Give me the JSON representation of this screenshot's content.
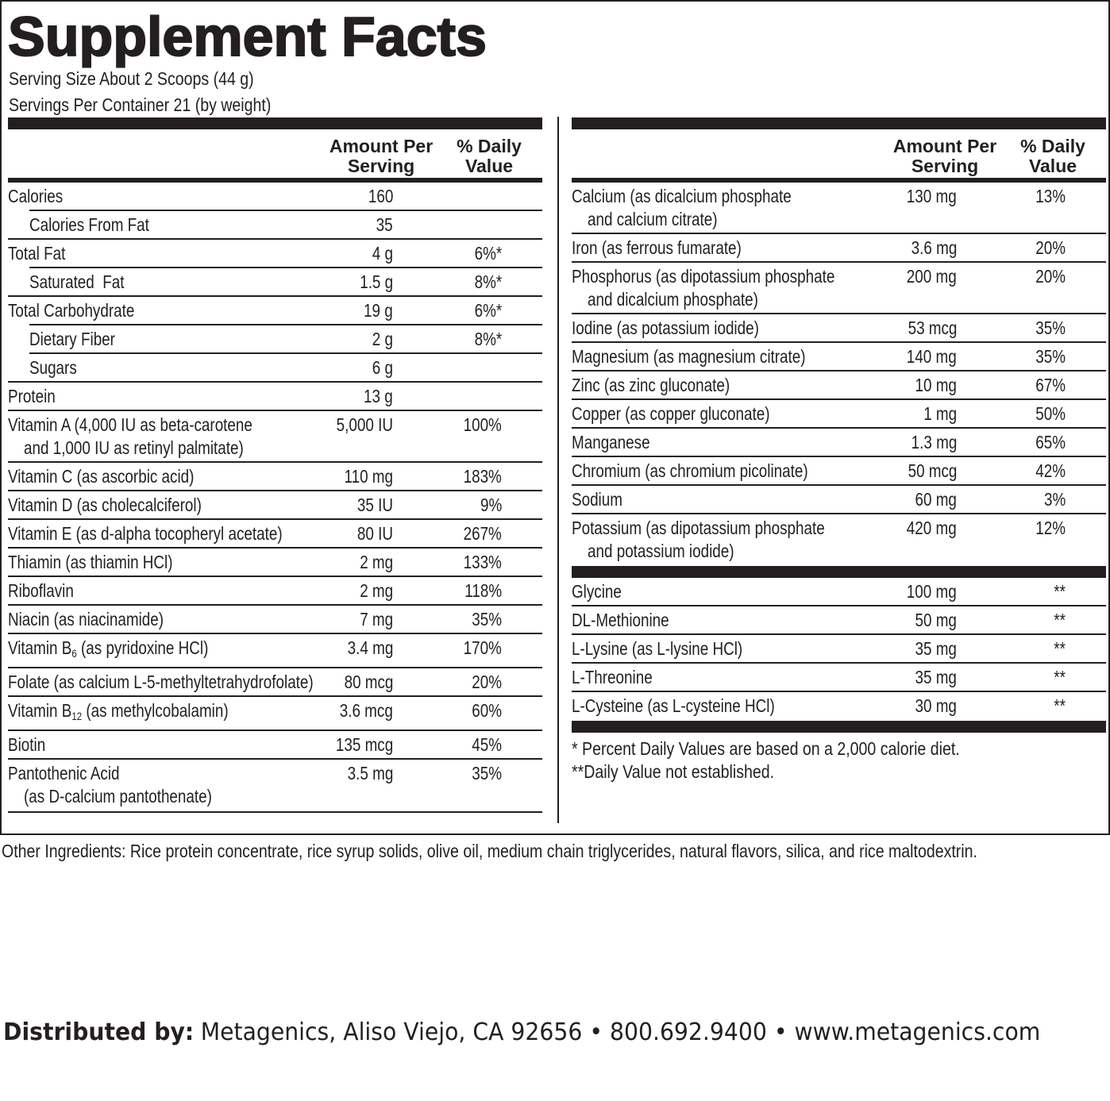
{
  "header": {
    "title": "Supplement Facts",
    "serving_size": "Serving Size About 2 Scoops (44 g)",
    "servings_per_container": "Servings Per Container 21 (by weight)"
  },
  "left_table": {
    "amount_header": [
      "Amount Per",
      "Serving"
    ],
    "dv_header": [
      "% Daily",
      "Value"
    ],
    "rows": [
      {
        "name": [
          "Calories"
        ],
        "amount": "160",
        "sub_rows": [
          {
            "name": [
              "Calories From Fat"
            ],
            "amount": "35"
          }
        ]
      },
      {
        "name": [
          "Total Fat"
        ],
        "amount": "4 g",
        "dv": "6%*",
        "sub_rows": [
          {
            "name": [
              "Saturated  Fat"
            ],
            "amount": "1.5 g",
            "dv": "8%*"
          }
        ]
      },
      {
        "name": [
          "Total Carbohydrate"
        ],
        "amount": "19 g",
        "dv": "6%*",
        "sub_rows": [
          {
            "name": [
              "Dietary Fiber"
            ],
            "amount": "2 g",
            "dv": "8%*"
          },
          {
            "name": [
              "Sugars"
            ],
            "amount": "6 g"
          }
        ]
      },
      {
        "name": [
          "Protein"
        ],
        "amount": "13 g"
      },
      {
        "name": [
          "Vitamin A (4,000 IU as beta-carotene",
          "and 1,000 IU as retinyl palmitate)"
        ],
        "amount": "5,000 IU",
        "dv": "100%"
      },
      {
        "name": [
          "Vitamin C (as ascorbic acid)"
        ],
        "amount": "110 mg",
        "dv": "183%"
      },
      {
        "name": [
          "Vitamin D (as cholecalciferol)"
        ],
        "amount": "35 IU",
        "dv": "9%"
      },
      {
        "name": [
          "Vitamin E (as d-alpha tocopheryl acetate)"
        ],
        "amount": "80 IU",
        "dv": "267%"
      },
      {
        "name": [
          "Thiamin (as thiamin HCl)"
        ],
        "amount": "2 mg",
        "dv": "133%"
      },
      {
        "name": [
          "Riboflavin"
        ],
        "amount": "2 mg",
        "dv": "118%"
      },
      {
        "name": [
          "Niacin (as niacinamide)"
        ],
        "amount": "7 mg",
        "dv": "35%"
      },
      {
        "name": [
          [
            {
              "text": "Vitamin B"
            },
            {
              "text": "6",
              "sub": true
            },
            {
              "text": " (as pyridoxine HCl)"
            }
          ]
        ],
        "amount": "3.4 mg",
        "dv": "170%"
      },
      {
        "name": [
          "Folate (as calcium L-5-methyltetrahydrofolate)"
        ],
        "amount": "80 mcg",
        "dv": "20%"
      },
      {
        "name": [
          [
            {
              "text": "Vitamin B"
            },
            {
              "text": "12",
              "sub": true
            },
            {
              "text": " (as methylcobalamin)"
            }
          ]
        ],
        "amount": "3.6 mcg",
        "dv": "60%"
      },
      {
        "name": [
          "Biotin"
        ],
        "amount": "135 mcg",
        "dv": "45%"
      },
      {
        "name": [
          "Pantothenic Acid",
          "(as D-calcium pantothenate)"
        ],
        "amount": "3.5 mg",
        "dv": "35%"
      }
    ]
  },
  "right_table": {
    "amount_header": [
      "Amount Per",
      "Serving"
    ],
    "dv_header": [
      "% Daily",
      "Value"
    ],
    "groups": [
      {
        "rows": [
          {
            "name": [
              "Calcium (as dicalcium phosphate",
              "and calcium citrate)"
            ],
            "amount": "130 mg",
            "dv": "13%"
          },
          {
            "name": [
              "Iron (as ferrous fumarate)"
            ],
            "amount": "3.6 mg",
            "dv": "20%"
          },
          {
            "name": [
              "Phosphorus (as dipotassium phosphate",
              "and dicalcium phosphate)"
            ],
            "amount": "200 mg",
            "dv": "20%"
          },
          {
            "name": [
              "Iodine (as potassium iodide)"
            ],
            "amount": "53 mcg",
            "dv": "35%"
          },
          {
            "name": [
              "Magnesium (as magnesium citrate)"
            ],
            "amount": "140 mg",
            "dv": "35%"
          },
          {
            "name": [
              "Zinc (as zinc gluconate)"
            ],
            "amount": "10 mg",
            "dv": "67%"
          },
          {
            "name": [
              "Copper (as copper gluconate)"
            ],
            "amount": "1 mg",
            "dv": "50%"
          },
          {
            "name": [
              "Manganese"
            ],
            "amount": "1.3 mg",
            "dv": "65%"
          },
          {
            "name": [
              "Chromium (as chromium picolinate)"
            ],
            "amount": "50 mcg",
            "dv": "42%"
          },
          {
            "name": [
              "Sodium"
            ],
            "amount": "60 mg",
            "dv": "3%"
          },
          {
            "name": [
              "Potassium (as dipotassium phosphate",
              "and potassium iodide)"
            ],
            "amount": "420 mg",
            "dv": "12%"
          }
        ]
      },
      {
        "rows": [
          {
            "name": [
              "Glycine"
            ],
            "amount": "100 mg",
            "dv": "**"
          },
          {
            "name": [
              "DL-Methionine"
            ],
            "amount": "50 mg",
            "dv": "**"
          },
          {
            "name": [
              "L-Lysine (as L-lysine HCl)"
            ],
            "amount": "35 mg",
            "dv": "**"
          },
          {
            "name": [
              "L-Threonine"
            ],
            "amount": "35 mg",
            "dv": "**"
          },
          {
            "name": [
              "L-Cysteine (as L-cysteine HCl)"
            ],
            "amount": "30 mg",
            "dv": "**"
          }
        ]
      }
    ],
    "footnotes": [
      "* Percent Daily Values are based on a 2,000 calorie diet.",
      "**Daily Value not established."
    ]
  },
  "other_ingredients": "Other Ingredients: Rice protein concentrate, rice syrup solids, olive oil, medium chain triglycerides, natural flavors, silica, and rice maltodextrin.",
  "distributor": {
    "label": "Distributed by:",
    "text": "Metagenics, Aliso Viejo, CA 92656 • 800.692.9400 • www.metagenics.com"
  }
}
